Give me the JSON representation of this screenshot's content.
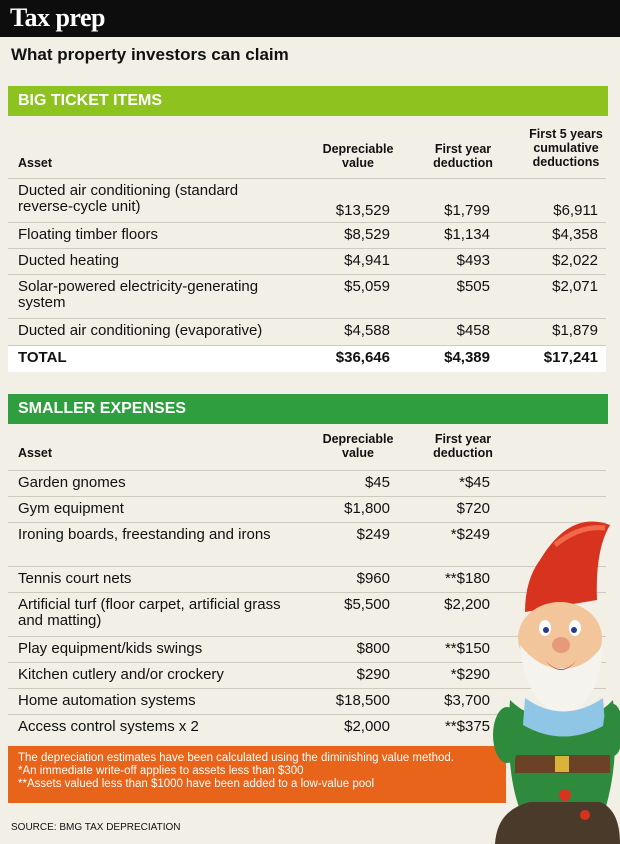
{
  "header": {
    "title": "Tax prep"
  },
  "subtitle": "What property investors can claim",
  "big_ticket": {
    "band_label": "BIG TICKET ITEMS",
    "columns": [
      "Asset",
      "Depreciable value",
      "First year deduction",
      "First 5 years cumulative deductions"
    ],
    "rows": [
      {
        "asset": "Ducted air conditioning (standard reverse-cycle unit)",
        "value": "$13,529",
        "first_year": "$1,799",
        "five_year": "$6,911"
      },
      {
        "asset": "Floating timber floors",
        "value": "$8,529",
        "first_year": "$1,134",
        "five_year": "$4,358"
      },
      {
        "asset": "Ducted heating",
        "value": "$4,941",
        "first_year": "$493",
        "five_year": "$2,022"
      },
      {
        "asset": "Solar-powered electricity-generating system",
        "value": "$5,059",
        "first_year": "$505",
        "five_year": "$2,071"
      },
      {
        "asset": "Ducted air conditioning (evaporative)",
        "value": "$4,588",
        "first_year": "$458",
        "five_year": "$1,879"
      }
    ],
    "total": {
      "asset": "TOTAL",
      "value": "$36,646",
      "first_year": "$4,389",
      "five_year": "$17,241"
    }
  },
  "smaller": {
    "band_label": "SMALLER EXPENSES",
    "columns": [
      "Asset",
      "Depreciable value",
      "First year deduction"
    ],
    "rows": [
      {
        "asset": "Garden gnomes",
        "value": "$45",
        "first_year": "*$45"
      },
      {
        "asset": "Gym equipment",
        "value": "$1,800",
        "first_year": "$720"
      },
      {
        "asset": "Ironing boards, freestanding and irons",
        "value": "$249",
        "first_year": "*$249"
      },
      {
        "asset": "Tennis court nets",
        "value": "$960",
        "first_year": "**$180"
      },
      {
        "asset": "Artificial turf (floor carpet, artificial grass and matting)",
        "value": "$5,500",
        "first_year": "$2,200"
      },
      {
        "asset": "Play equipment/kids swings",
        "value": "$800",
        "first_year": "**$150"
      },
      {
        "asset": "Kitchen cutlery and/or crockery",
        "value": "$290",
        "first_year": "*$290"
      },
      {
        "asset": "Home automation systems",
        "value": "$18,500",
        "first_year": "$3,700"
      },
      {
        "asset": "Access control systems x 2",
        "value": "$2,000",
        "first_year": "**$375"
      }
    ]
  },
  "notes": [
    "The depreciation estimates have been calculated using the diminishing value method.",
    "*An immediate write-off applies to assets less than $300",
    "**Assets valued less than $1000 have been added to a low-value pool"
  ],
  "source": "SOURCE: BMG TAX DEPRECIATION",
  "colors": {
    "header": "#0d0d0d",
    "band_big": "#8dc21f",
    "band_small": "#2e9e3e",
    "notes_bg": "#e8641a",
    "page_bg": "#f2efe6"
  },
  "illustration": "garden-gnome"
}
